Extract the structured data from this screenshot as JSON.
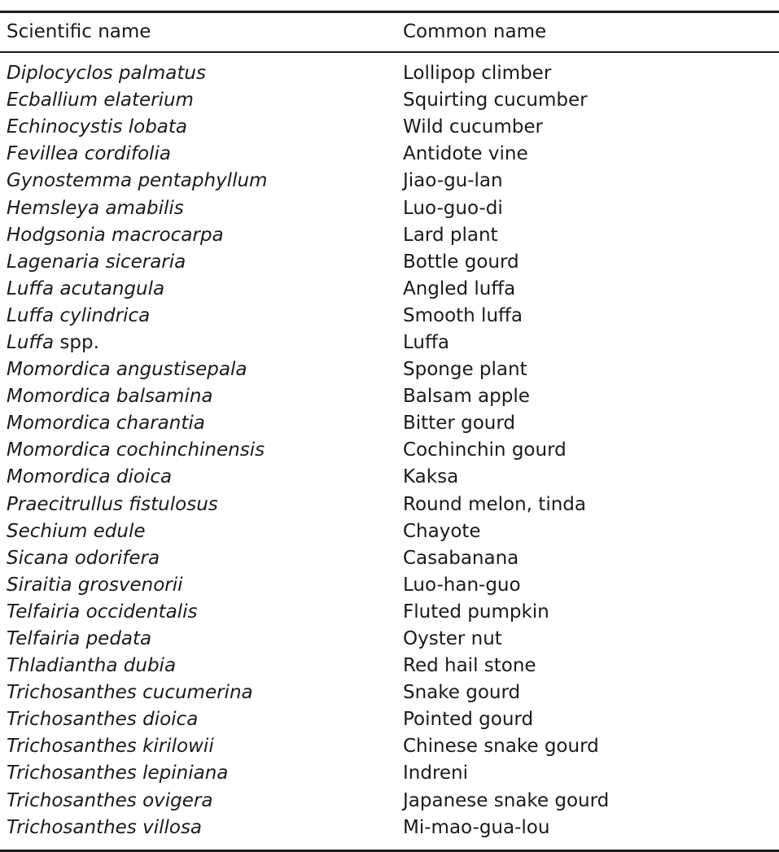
{
  "table": {
    "headers": {
      "scientific": "Scientific name",
      "common": "Common name"
    },
    "rows": [
      {
        "scientific": "Diplocyclos palmatus",
        "suffix": "",
        "common": "Lollipop climber"
      },
      {
        "scientific": "Ecballium elaterium",
        "suffix": "",
        "common": "Squirting cucumber"
      },
      {
        "scientific": "Echinocystis lobata",
        "suffix": "",
        "common": "Wild cucumber"
      },
      {
        "scientific": "Fevillea cordifolia",
        "suffix": "",
        "common": "Antidote vine"
      },
      {
        "scientific": "Gynostemma pentaphyllum",
        "suffix": "",
        "common": "Jiao-gu-lan"
      },
      {
        "scientific": "Hemsleya amabilis",
        "suffix": "",
        "common": "Luo-guo-di"
      },
      {
        "scientific": "Hodgsonia macrocarpa",
        "suffix": "",
        "common": "Lard plant"
      },
      {
        "scientific": "Lagenaria siceraria",
        "suffix": "",
        "common": "Bottle gourd"
      },
      {
        "scientific": "Luffa acutangula",
        "suffix": "",
        "common": "Angled luffa"
      },
      {
        "scientific": "Luffa cylindrica",
        "suffix": "",
        "common": "Smooth luffa"
      },
      {
        "scientific": "Luffa",
        "suffix": " spp.",
        "common": "Luffa"
      },
      {
        "scientific": "Momordica angustisepala",
        "suffix": "",
        "common": "Sponge plant"
      },
      {
        "scientific": "Momordica balsamina",
        "suffix": "",
        "common": "Balsam apple"
      },
      {
        "scientific": "Momordica charantia",
        "suffix": "",
        "common": "Bitter gourd"
      },
      {
        "scientific": "Momordica cochinchinensis",
        "suffix": "",
        "common": "Cochinchin gourd"
      },
      {
        "scientific": "Momordica dioica",
        "suffix": "",
        "common": "Kaksa"
      },
      {
        "scientific": "Praecitrullus fistulosus",
        "suffix": "",
        "common": "Round melon, tinda"
      },
      {
        "scientific": "Sechium edule",
        "suffix": "",
        "common": "Chayote"
      },
      {
        "scientific": "Sicana odorifera",
        "suffix": "",
        "common": "Casabanana"
      },
      {
        "scientific": "Siraitia grosvenorii",
        "suffix": "",
        "common": "Luo-han-guo"
      },
      {
        "scientific": "Telfairia occidentalis",
        "suffix": "",
        "common": "Fluted pumpkin"
      },
      {
        "scientific": "Telfairia pedata",
        "suffix": "",
        "common": "Oyster nut"
      },
      {
        "scientific": "Thladiantha dubia",
        "suffix": "",
        "common": "Red hail stone"
      },
      {
        "scientific": "Trichosanthes cucumerina",
        "suffix": "",
        "common": "Snake gourd"
      },
      {
        "scientific": "Trichosanthes dioica",
        "suffix": "",
        "common": "Pointed gourd"
      },
      {
        "scientific": "Trichosanthes kirilowii",
        "suffix": "",
        "common": "Chinese snake gourd"
      },
      {
        "scientific": "Trichosanthes lepiniana",
        "suffix": "",
        "common": "Indreni"
      },
      {
        "scientific": "Trichosanthes ovigera",
        "suffix": "",
        "common": "Japanese snake gourd"
      },
      {
        "scientific": "Trichosanthes villosa",
        "suffix": "",
        "common": "Mi-mao-gua-lou"
      }
    ]
  }
}
